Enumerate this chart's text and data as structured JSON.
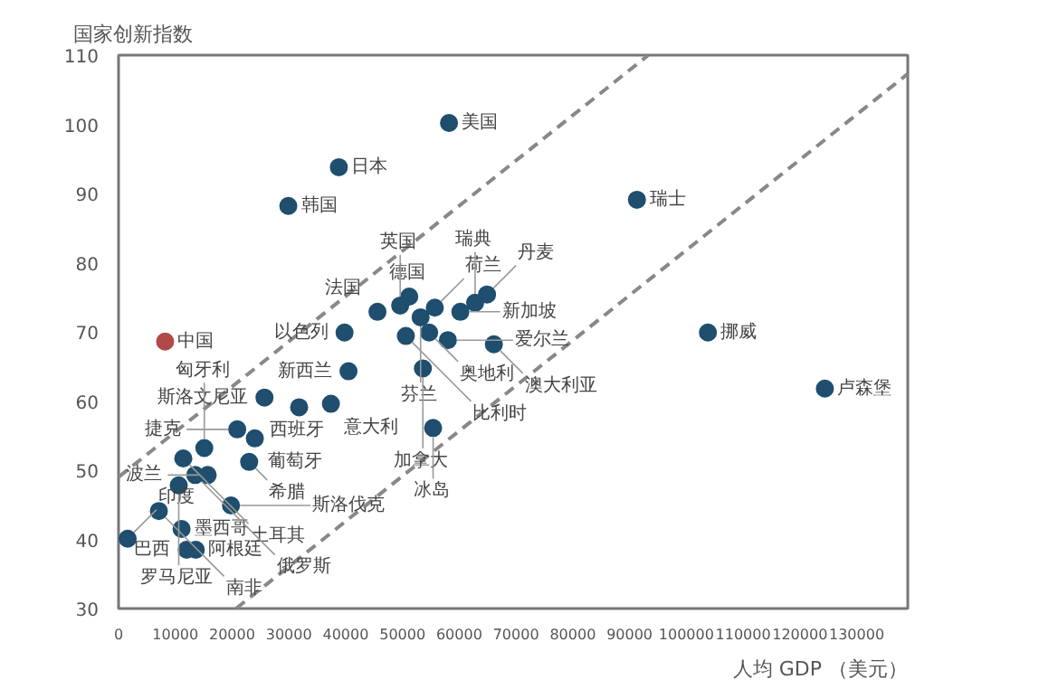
{
  "chart_data": {
    "type": "scatter",
    "ylabel": "国家创新指数",
    "xlabel": "人均 GDP （美元）",
    "xlim": [
      0,
      139000
    ],
    "ylim": [
      30,
      110
    ],
    "xticks": [
      0,
      10000,
      20000,
      30000,
      40000,
      50000,
      60000,
      70000,
      80000,
      90000,
      100000,
      110000,
      120000,
      130000
    ],
    "yticks": [
      30,
      40,
      50,
      60,
      70,
      80,
      90,
      100,
      110
    ],
    "marker": "circle",
    "series": [
      {
        "x": [
          58200,
          38800,
          29900,
          8200,
          39800,
          45600,
          51200,
          49600,
          55700,
          60200,
          62800,
          64900,
          53200,
          54700,
          50600,
          58000,
          66100,
          40500,
          53600,
          25700,
          31800,
          37400,
          55400,
          20900,
          24000,
          15100,
          11400,
          23000,
          13500,
          15700,
          10600,
          19800,
          7100,
          11100,
          12000,
          13600,
          1600,
          91300,
          103800,
          124400
        ],
        "values": [
          100.2,
          93.8,
          88.2,
          68.6,
          69.9,
          72.9,
          75.1,
          73.8,
          73.5,
          72.9,
          74.2,
          75.4,
          72.1,
          69.9,
          69.4,
          68.8,
          68.2,
          64.3,
          64.7,
          60.5,
          59.1,
          59.6,
          56.1,
          55.9,
          54.6,
          53.2,
          51.7,
          51.2,
          49.3,
          49.3,
          47.8,
          44.9,
          44.1,
          41.5,
          38.5,
          38.5,
          40.1,
          89.1,
          69.9,
          61.8
        ],
        "colors": [
          "#1f4e6e",
          "#1f4e6e",
          "#1f4e6e",
          "#b04a4a",
          "#1f4e6e",
          "#1f4e6e",
          "#1f4e6e",
          "#1f4e6e",
          "#1f4e6e",
          "#1f4e6e",
          "#1f4e6e",
          "#1f4e6e",
          "#1f4e6e",
          "#1f4e6e",
          "#1f4e6e",
          "#1f4e6e",
          "#1f4e6e",
          "#1f4e6e",
          "#1f4e6e",
          "#1f4e6e",
          "#1f4e6e",
          "#1f4e6e",
          "#1f4e6e",
          "#1f4e6e",
          "#1f4e6e",
          "#1f4e6e",
          "#1f4e6e",
          "#1f4e6e",
          "#1f4e6e",
          "#1f4e6e",
          "#1f4e6e",
          "#1f4e6e",
          "#1f4e6e",
          "#1f4e6e",
          "#1f4e6e",
          "#1f4e6e",
          "#1f4e6e",
          "#1f4e6e",
          "#1f4e6e",
          "#1f4e6e"
        ]
      },
      {
        "type": "line",
        "x": [
          0,
          93300
        ],
        "values": [
          49,
          110
        ],
        "color": "#888888",
        "line_style": "dashed",
        "marker": "none"
      },
      {
        "type": "line",
        "x": [
          20700,
          139000
        ],
        "values": [
          30,
          107.3
        ],
        "color": "#888888",
        "line_style": "dashed",
        "marker": "none"
      }
    ],
    "annotations": [
      {
        "text": "美国",
        "x": 58200,
        "y": 100.2
      },
      {
        "text": "日本",
        "x": 38800,
        "y": 93.8
      },
      {
        "text": "韩国",
        "x": 29900,
        "y": 88.2
      },
      {
        "text": "中国",
        "x": 8200,
        "y": 68.6
      },
      {
        "text": "以色列",
        "x": 39800,
        "y": 69.9
      },
      {
        "text": "法国",
        "x": 45600,
        "y": 72.9
      },
      {
        "text": "德国",
        "x": 51200,
        "y": 75.1
      },
      {
        "text": "英国",
        "x": 49600,
        "y": 73.8
      },
      {
        "text": "荷兰",
        "x": 55700,
        "y": 73.5
      },
      {
        "text": "新加坡",
        "x": 60200,
        "y": 72.9
      },
      {
        "text": "瑞典",
        "x": 62800,
        "y": 74.2
      },
      {
        "text": "丹麦",
        "x": 64900,
        "y": 75.4
      },
      {
        "text": "芬兰",
        "x": 53200,
        "y": 72.1
      },
      {
        "text": "奥地利",
        "x": 54700,
        "y": 69.9
      },
      {
        "text": "比利时",
        "x": 50600,
        "y": 69.4
      },
      {
        "text": "爱尔兰",
        "x": 58000,
        "y": 68.8
      },
      {
        "text": "澳大利亚",
        "x": 66100,
        "y": 68.2
      },
      {
        "text": "新西兰",
        "x": 40500,
        "y": 64.3
      },
      {
        "text": "加拿大",
        "x": 53600,
        "y": 64.7
      },
      {
        "text": "斯洛文尼亚",
        "x": 25700,
        "y": 60.5
      },
      {
        "text": "西班牙",
        "x": 31800,
        "y": 59.1
      },
      {
        "text": "意大利",
        "x": 37400,
        "y": 59.6
      },
      {
        "text": "冰岛",
        "x": 55400,
        "y": 56.1
      },
      {
        "text": "捷克",
        "x": 20900,
        "y": 55.9
      },
      {
        "text": "葡萄牙",
        "x": 24000,
        "y": 54.6
      },
      {
        "text": "匈牙利",
        "x": 15100,
        "y": 53.2
      },
      {
        "text": "土耳其",
        "x": 11400,
        "y": 51.7
      },
      {
        "text": "希腊",
        "x": 23000,
        "y": 51.2
      },
      {
        "text": "俄罗斯",
        "x": 13500,
        "y": 49.3
      },
      {
        "text": "波兰",
        "x": 15700,
        "y": 49.3
      },
      {
        "text": "罗马尼亚",
        "x": 10600,
        "y": 47.8
      },
      {
        "text": "斯洛伐克",
        "x": 19800,
        "y": 44.9
      },
      {
        "text": "南非",
        "x": 7100,
        "y": 44.1
      },
      {
        "text": "墨西哥",
        "x": 11100,
        "y": 41.5
      },
      {
        "text": "巴西",
        "x": 12000,
        "y": 38.5
      },
      {
        "text": "阿根廷",
        "x": 13600,
        "y": 38.5
      },
      {
        "text": "印度",
        "x": 1600,
        "y": 40.1
      },
      {
        "text": "瑞士",
        "x": 91300,
        "y": 89.1
      },
      {
        "text": "挪威",
        "x": 103800,
        "y": 69.9
      },
      {
        "text": "卢森堡",
        "x": 124400,
        "y": 61.8
      }
    ]
  }
}
